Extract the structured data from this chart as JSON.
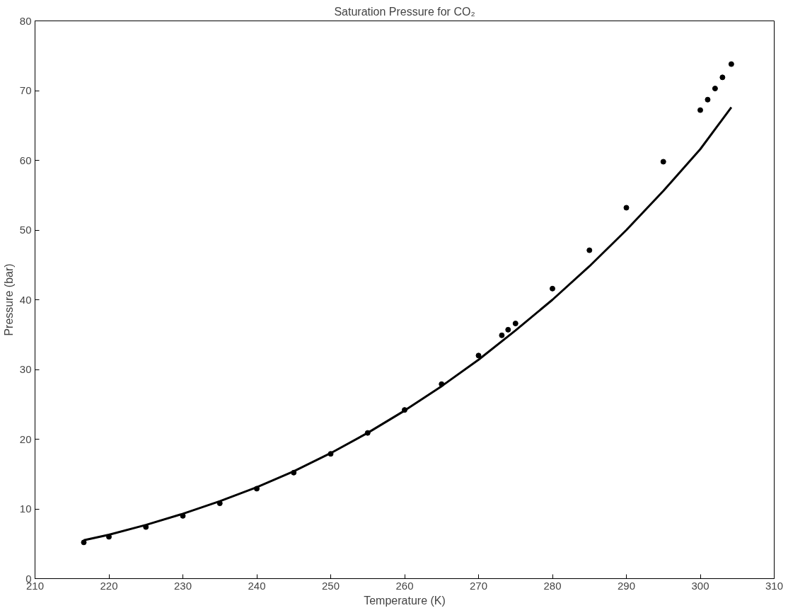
{
  "chart_data": {
    "type": "scatter",
    "title": "Saturation Pressure for CO₂",
    "xlabel": "Temperature (K)",
    "ylabel": "Pressure (bar)",
    "xlim": [
      210,
      310
    ],
    "ylim": [
      0,
      80
    ],
    "xticks": [
      210,
      220,
      230,
      240,
      250,
      260,
      270,
      280,
      290,
      300,
      310
    ],
    "yticks": [
      0,
      10,
      20,
      30,
      40,
      50,
      60,
      70,
      80
    ],
    "grid": false,
    "series": [
      {
        "marker": "circle",
        "color": "#000000",
        "x": [
          216.6,
          220,
          225,
          230,
          235,
          240,
          245,
          250,
          255,
          260,
          265,
          270,
          273.15,
          274,
          275,
          280,
          285,
          290,
          295,
          300,
          301,
          302,
          303,
          304.2
        ],
        "values": [
          5.2,
          6.0,
          7.4,
          9.0,
          10.8,
          12.9,
          15.2,
          17.9,
          20.9,
          24.2,
          27.9,
          32.0,
          34.9,
          35.7,
          36.6,
          41.6,
          47.1,
          53.2,
          59.8,
          67.2,
          68.7,
          70.3,
          71.9,
          73.8
        ]
      },
      {
        "type": "line",
        "line_style": "solid",
        "color": "#000000",
        "x": [
          216.6,
          220,
          225,
          230,
          235,
          240,
          245,
          250,
          255,
          260,
          265,
          270,
          275,
          280,
          285,
          290,
          295,
          300,
          304.2
        ],
        "values": [
          5.5,
          6.3,
          7.7,
          9.3,
          11.1,
          13.1,
          15.4,
          18.0,
          20.9,
          24.1,
          27.6,
          31.4,
          35.6,
          40.0,
          44.8,
          50.0,
          55.6,
          61.6,
          67.6
        ]
      }
    ]
  }
}
